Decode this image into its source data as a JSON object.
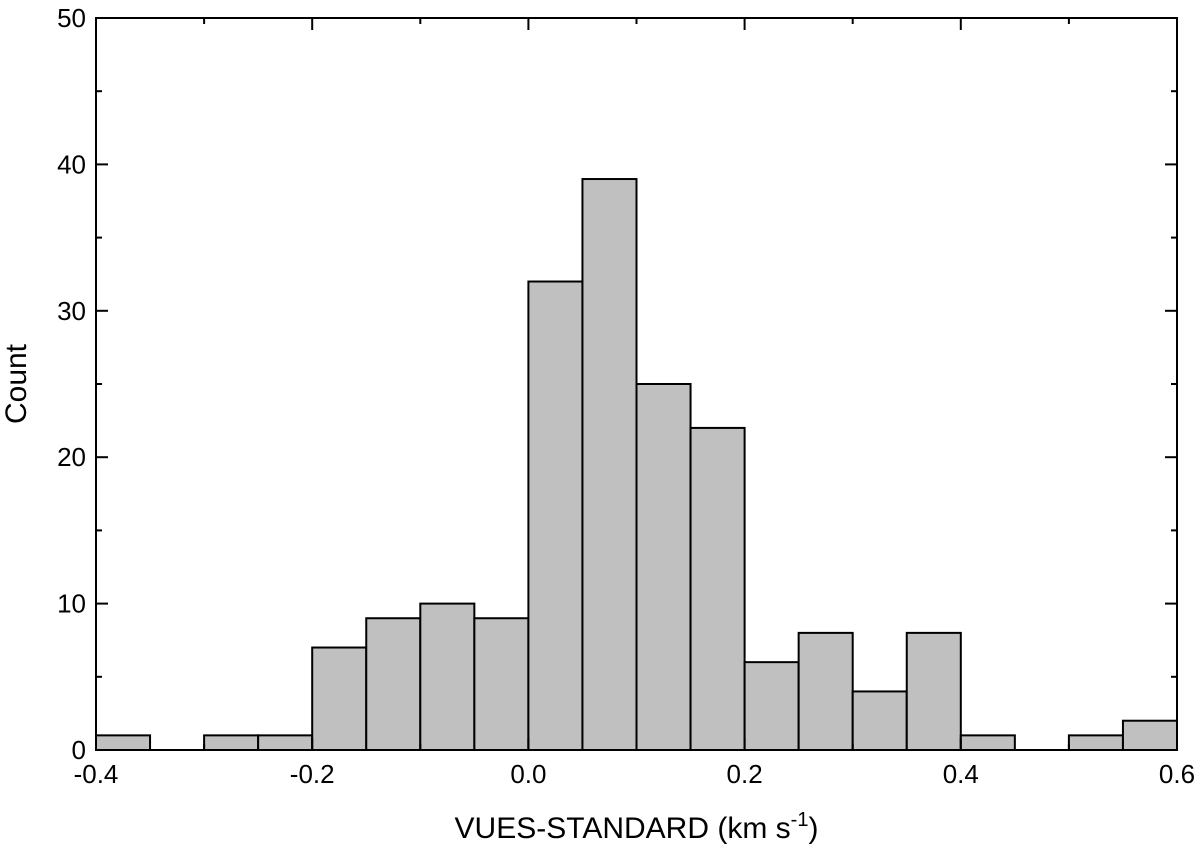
{
  "chart_data": {
    "type": "bar",
    "bin_width": 0.05,
    "bins": [
      {
        "x0": -0.4,
        "x1": -0.35,
        "count": 1
      },
      {
        "x0": -0.3,
        "x1": -0.25,
        "count": 1
      },
      {
        "x0": -0.25,
        "x1": -0.2,
        "count": 1
      },
      {
        "x0": -0.2,
        "x1": -0.15,
        "count": 7
      },
      {
        "x0": -0.15,
        "x1": -0.1,
        "count": 9
      },
      {
        "x0": -0.1,
        "x1": -0.05,
        "count": 10
      },
      {
        "x0": -0.05,
        "x1": 0.0,
        "count": 9
      },
      {
        "x0": 0.0,
        "x1": 0.05,
        "count": 32
      },
      {
        "x0": 0.05,
        "x1": 0.1,
        "count": 39
      },
      {
        "x0": 0.1,
        "x1": 0.15,
        "count": 25
      },
      {
        "x0": 0.15,
        "x1": 0.2,
        "count": 22
      },
      {
        "x0": 0.2,
        "x1": 0.25,
        "count": 6
      },
      {
        "x0": 0.25,
        "x1": 0.3,
        "count": 8
      },
      {
        "x0": 0.3,
        "x1": 0.35,
        "count": 4
      },
      {
        "x0": 0.35,
        "x1": 0.4,
        "count": 8
      },
      {
        "x0": 0.4,
        "x1": 0.45,
        "count": 1
      },
      {
        "x0": 0.5,
        "x1": 0.55,
        "count": 1
      },
      {
        "x0": 0.55,
        "x1": 0.6,
        "count": 2
      }
    ],
    "xlabel": "VUES-STANDARD (km s",
    "xlabel_sup": "-1",
    "xlabel_end": ")",
    "ylabel": "Count",
    "xlim": [
      -0.4,
      0.6
    ],
    "ylim": [
      0,
      50
    ],
    "x_ticks": [
      "-0.4",
      "-0.2",
      "0.0",
      "0.2",
      "0.4",
      "0.6"
    ],
    "x_tick_values": [
      -0.4,
      -0.2,
      0.0,
      0.2,
      0.4,
      0.6
    ],
    "y_ticks": [
      "0",
      "10",
      "20",
      "30",
      "40",
      "50"
    ],
    "y_tick_values": [
      0,
      10,
      20,
      30,
      40,
      50
    ],
    "grid": false,
    "bar_color": "#c0c0c0",
    "edge_color": "#000000"
  }
}
